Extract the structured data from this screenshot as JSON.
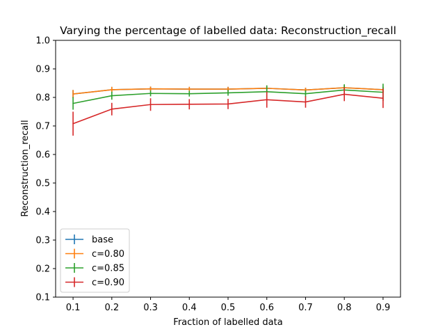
{
  "chart_data": {
    "type": "line",
    "title": "Varying the percentage of labelled data: Reconstruction_recall",
    "xlabel": "Fraction of labelled data",
    "ylabel": "Reconstruction_recall",
    "x": [
      0.1,
      0.2,
      0.3,
      0.4,
      0.5,
      0.6,
      0.7,
      0.8,
      0.9
    ],
    "xticks": [
      "0.1",
      "0.2",
      "0.3",
      "0.4",
      "0.5",
      "0.6",
      "0.7",
      "0.8",
      "0.9"
    ],
    "yticks": [
      "0.1",
      "0.2",
      "0.3",
      "0.4",
      "0.5",
      "0.6",
      "0.7",
      "0.8",
      "0.9",
      "1.0"
    ],
    "xlim": [
      0.055,
      0.945
    ],
    "ylim": [
      0.1,
      1.0
    ],
    "grid": false,
    "legend_position": "lower-left",
    "series": [
      {
        "name": "base",
        "color": "#1f77b4",
        "values": [
          0.812,
          0.827,
          0.83,
          0.829,
          0.829,
          0.832,
          0.826,
          0.834,
          0.827
        ],
        "errors": [
          0.014,
          0.01,
          0.008,
          0.008,
          0.008,
          0.01,
          0.008,
          0.01,
          0.01
        ]
      },
      {
        "name": "c=0.80",
        "color": "#ff7f0e",
        "values": [
          0.812,
          0.827,
          0.83,
          0.829,
          0.829,
          0.832,
          0.826,
          0.834,
          0.827
        ],
        "errors": [
          0.014,
          0.01,
          0.008,
          0.008,
          0.008,
          0.01,
          0.008,
          0.01,
          0.01
        ]
      },
      {
        "name": "c=0.85",
        "color": "#2ca02c",
        "values": [
          0.779,
          0.806,
          0.814,
          0.813,
          0.816,
          0.82,
          0.813,
          0.826,
          0.818
        ],
        "errors": [
          0.022,
          0.014,
          0.01,
          0.01,
          0.01,
          0.022,
          0.012,
          0.02,
          0.03
        ]
      },
      {
        "name": "c=0.90",
        "color": "#d62728",
        "values": [
          0.708,
          0.759,
          0.775,
          0.776,
          0.777,
          0.792,
          0.784,
          0.811,
          0.797
        ],
        "errors": [
          0.042,
          0.022,
          0.022,
          0.018,
          0.018,
          0.028,
          0.02,
          0.024,
          0.034
        ]
      }
    ]
  }
}
